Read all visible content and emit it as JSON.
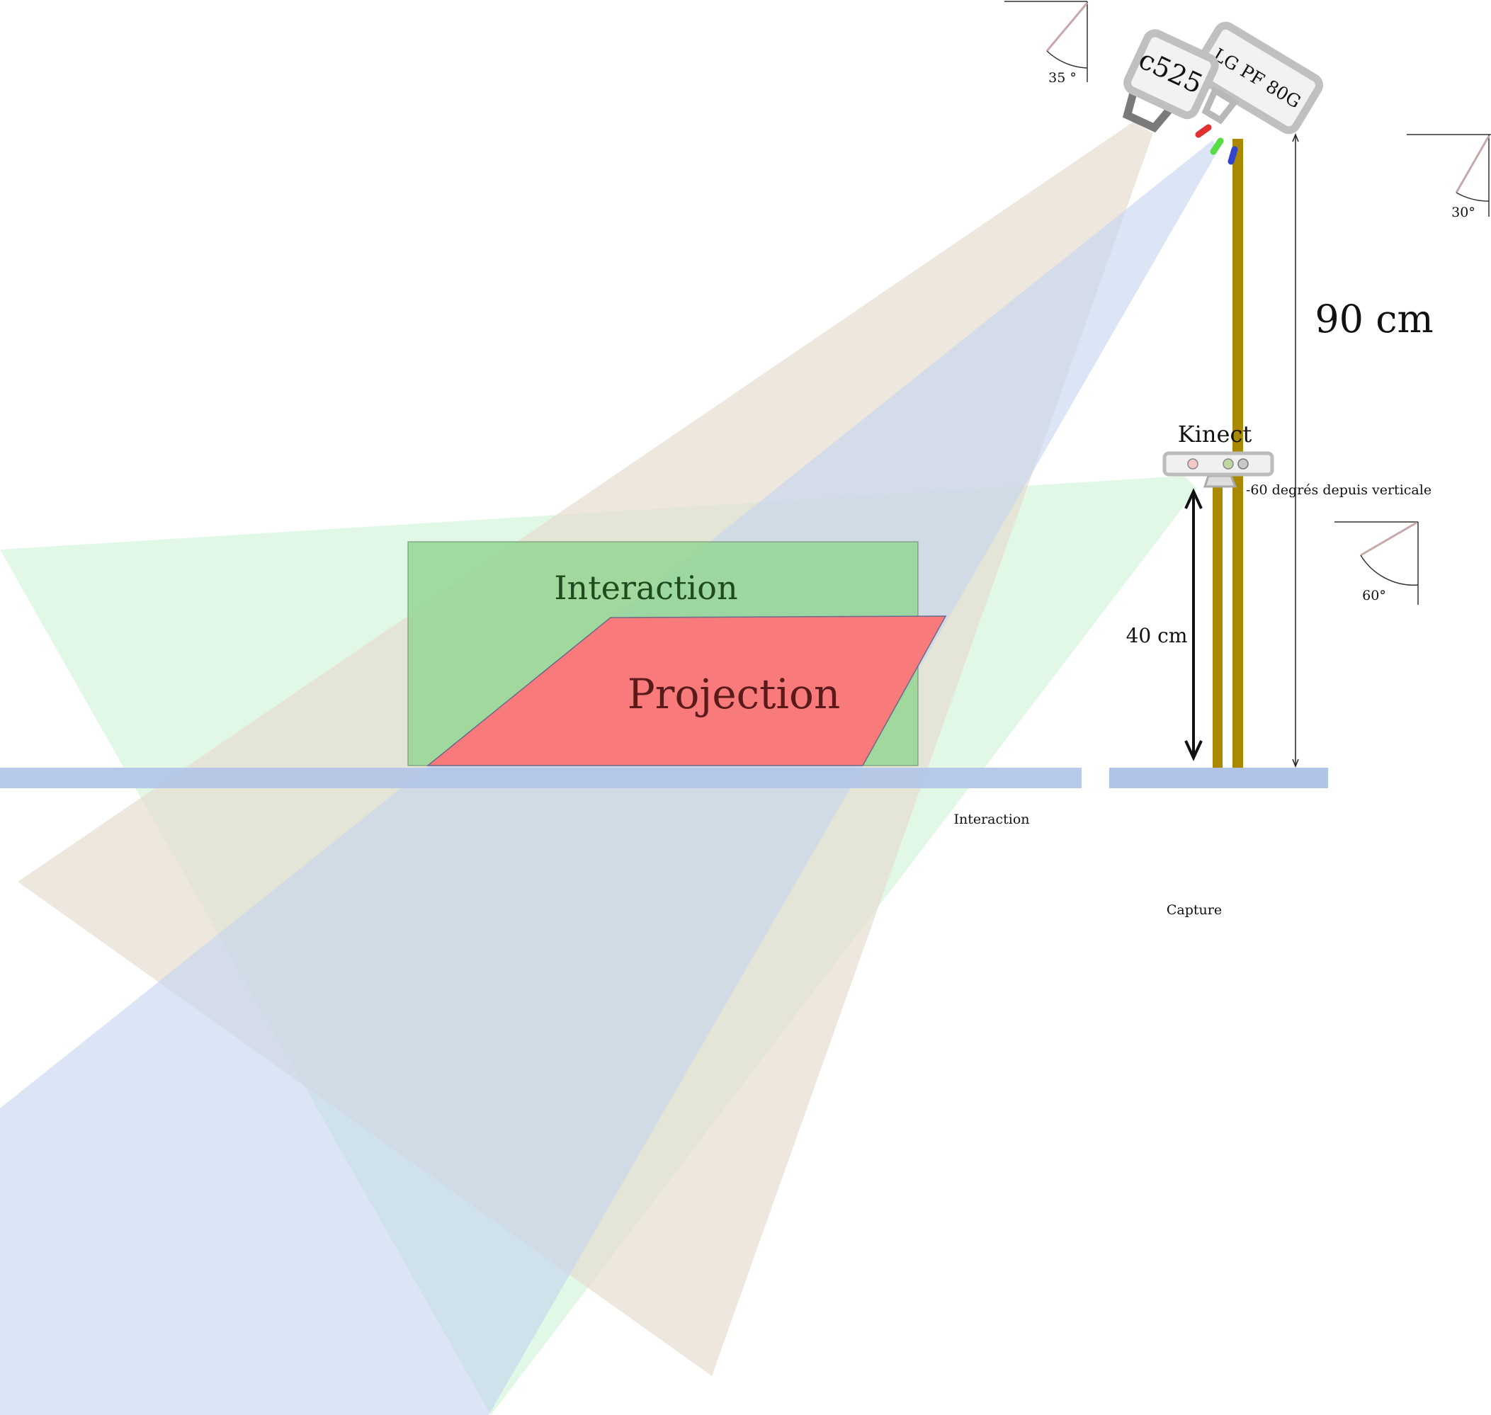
{
  "devices": {
    "webcam": {
      "label": "c525",
      "angle_label": "35 °"
    },
    "projector": {
      "label": "LG PF 80G",
      "angle_label": "30°"
    },
    "kinect": {
      "label": "Kinect",
      "tilt_note": "-60 degrés depuis verticale",
      "angle_label": "60°"
    }
  },
  "zones": {
    "interaction": {
      "label": "Interaction"
    },
    "projection": {
      "label": "Projection"
    }
  },
  "dimensions": {
    "projector_height": "90 cm",
    "kinect_height": "40 cm"
  },
  "captions": {
    "interaction": "Interaction",
    "capture": "Capture"
  },
  "colors": {
    "table": "#b0c4e8",
    "pole": "#aa8800",
    "interaction_zone": "#8fd48f",
    "projection_zone": "#f97a7a",
    "webcam_cone": "#e8e0d4",
    "projector_cone": "#c8d8f0",
    "kinect_cone": "#d6f5dc"
  }
}
